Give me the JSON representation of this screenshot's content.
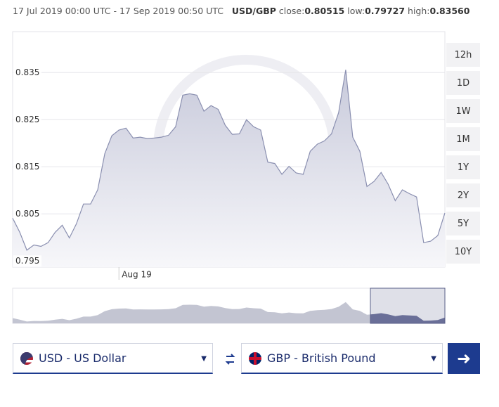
{
  "header": {
    "range": "17 Jul 2019 00:00 UTC - 17 Sep 2019 00:50 UTC",
    "pair": "USD/GBP",
    "close_label": "close:",
    "close": "0.80515",
    "low_label": "low:",
    "low": "0.79727",
    "high_label": "high:",
    "high": "0.83560"
  },
  "chart_data": {
    "type": "line",
    "color": "#8a8fb0",
    "categories": [
      null,
      null,
      null,
      null,
      null,
      null,
      null,
      null,
      null,
      null,
      null,
      null,
      null,
      null,
      null,
      "Aug 19",
      null,
      null,
      null,
      null,
      null,
      null,
      null,
      null,
      null,
      null,
      null,
      null,
      null,
      null,
      null,
      null,
      null,
      null,
      null,
      null,
      null,
      null,
      null,
      null,
      null,
      null,
      null,
      null,
      null,
      null,
      null,
      null,
      null,
      null,
      null,
      null,
      null,
      null,
      null,
      null,
      null,
      null,
      null,
      null,
      null,
      null
    ],
    "values": [
      0.8041,
      0.8011,
      0.7973,
      0.7984,
      0.7981,
      0.7989,
      0.8011,
      0.8026,
      0.7999,
      0.8029,
      0.8071,
      0.8071,
      0.8101,
      0.8178,
      0.8216,
      0.8228,
      0.8232,
      0.8211,
      0.8213,
      0.821,
      0.8211,
      0.8213,
      0.8217,
      0.8235,
      0.8302,
      0.8305,
      0.8302,
      0.8268,
      0.828,
      0.8272,
      0.8238,
      0.8219,
      0.822,
      0.825,
      0.8235,
      0.8228,
      0.816,
      0.8157,
      0.8134,
      0.8151,
      0.8137,
      0.8134,
      0.8183,
      0.8198,
      0.8205,
      0.822,
      0.8265,
      0.8356,
      0.8213,
      0.8183,
      0.8108,
      0.8119,
      0.8138,
      0.8113,
      0.8078,
      0.8101,
      0.8093,
      0.8086,
      0.7989,
      0.7992,
      0.8004,
      0.8052
    ],
    "ylim": [
      0.7937,
      0.8437
    ],
    "yticks": [
      0.795,
      0.805,
      0.815,
      0.825,
      0.835
    ],
    "grid": true
  },
  "range_buttons": [
    "12h",
    "1D",
    "1W",
    "1M",
    "1Y",
    "2Y",
    "5Y",
    "10Y"
  ],
  "converter": {
    "from": "USD - US Dollar",
    "to": "GBP - British Pound"
  }
}
